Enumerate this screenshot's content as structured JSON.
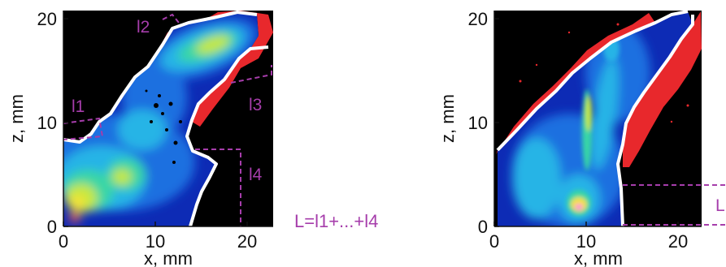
{
  "panels": [
    {
      "id": "left",
      "xlabel": "x, mm",
      "ylabel": "z, mm",
      "xticks": [
        "0",
        "10",
        "20"
      ],
      "yticks": [
        "0",
        "10",
        "20"
      ],
      "regions": [
        "l1",
        "l2",
        "l3",
        "l4"
      ],
      "annotation": "L=l1+...+l4"
    },
    {
      "id": "right",
      "xlabel": "x, mm",
      "ylabel": "z, mm",
      "xticks": [
        "0",
        "10",
        "20"
      ],
      "yticks": [
        "0",
        "10",
        "20"
      ],
      "regions": [
        "L"
      ]
    }
  ],
  "colors": {
    "background": "#000000",
    "overlay": "#e8282c",
    "boundary": "#ffffff",
    "roi": "#a63dab"
  },
  "colormap": [
    "#0d2bb5",
    "#1c6fe0",
    "#27b4e6",
    "#37d6a6",
    "#c6e83d",
    "#f4e23a",
    "#ff5a4a",
    "#ff8fd8"
  ]
}
